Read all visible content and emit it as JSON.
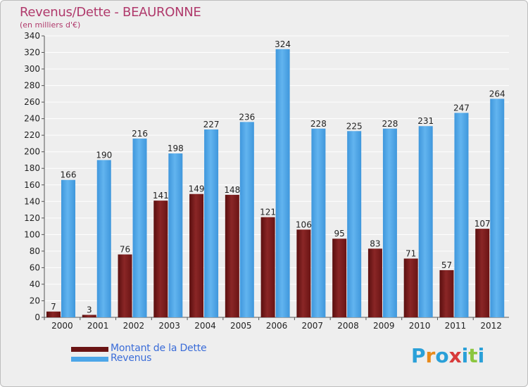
{
  "chart_data": {
    "type": "bar",
    "title": "Revenus/Dette - BEAURONNE",
    "subtitle": "(en milliers d'€)",
    "xlabel": "",
    "ylabel": "",
    "ylim": [
      0,
      340
    ],
    "yticks": [
      0,
      20,
      40,
      60,
      80,
      100,
      120,
      140,
      160,
      180,
      200,
      220,
      240,
      260,
      280,
      300,
      320,
      340
    ],
    "grid": true,
    "categories": [
      "2000",
      "2001",
      "2002",
      "2003",
      "2004",
      "2005",
      "2006",
      "2007",
      "2008",
      "2009",
      "2010",
      "2011",
      "2012"
    ],
    "series": [
      {
        "name": "Montant de la Dette",
        "color": "#7a1a1a",
        "values": [
          7,
          3,
          76,
          141,
          149,
          148,
          121,
          106,
          95,
          83,
          71,
          57,
          107
        ]
      },
      {
        "name": "Revenus",
        "color": "#4da6e8",
        "values": [
          166,
          190,
          216,
          198,
          227,
          236,
          324,
          228,
          225,
          228,
          231,
          247,
          264
        ]
      }
    ],
    "legend_position": "bottom-left"
  },
  "logo": {
    "letters": [
      "P",
      "r",
      "o",
      "x",
      "i",
      "t",
      "i"
    ],
    "colors": [
      "#2aa0d8",
      "#e88a1a",
      "#2aa0d8",
      "#d83a3a",
      "#2aa0d8",
      "#8cc63f",
      "#2aa0d8"
    ]
  }
}
